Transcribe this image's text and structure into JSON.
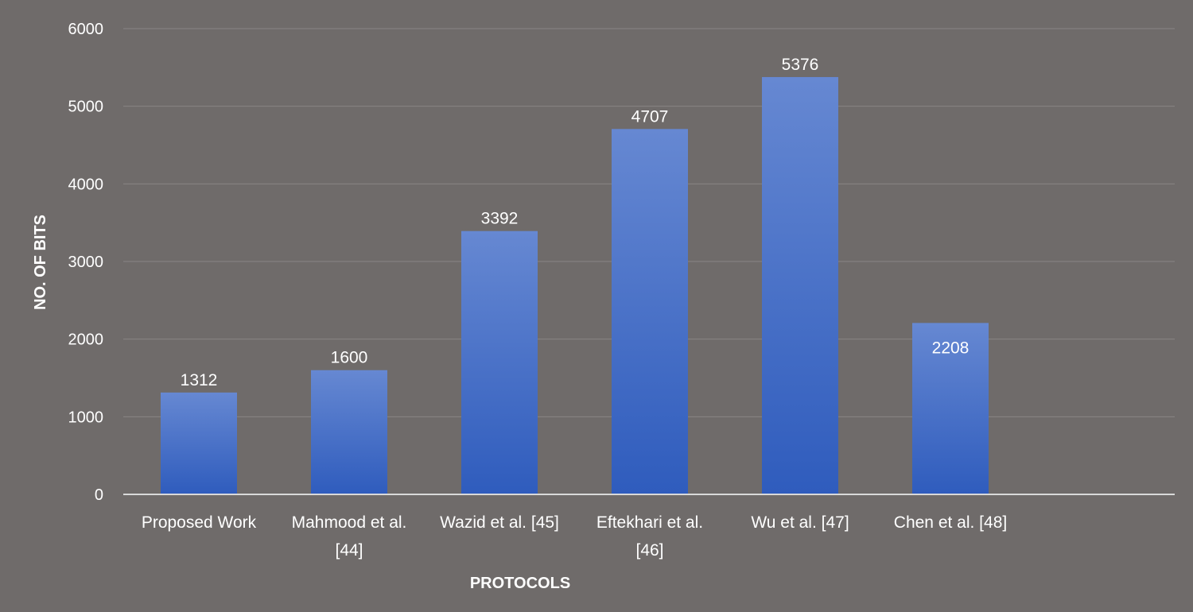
{
  "chart_data": {
    "type": "bar",
    "title": "",
    "xlabel": "PROTOCOLS",
    "ylabel": "NO. OF BITS",
    "ylim": [
      0,
      6000
    ],
    "yticks": [
      0,
      1000,
      2000,
      3000,
      4000,
      5000,
      6000
    ],
    "grid": true,
    "legend": "none",
    "categories": [
      [
        "Proposed Work"
      ],
      [
        "Mahmood et al.",
        "[44]"
      ],
      [
        "Wazid et al. [45]"
      ],
      [
        "Eftekhari et al.",
        "[46]"
      ],
      [
        "Wu et al. [47]"
      ],
      [
        "Chen et al. [48]"
      ]
    ],
    "values": [
      1312,
      1600,
      3392,
      4707,
      5376,
      2208
    ],
    "label_positions": [
      "above",
      "above",
      "above",
      "above",
      "above",
      "inside"
    ],
    "colors": {
      "background": "#6f6b6a",
      "bar_top": "#6688d2",
      "bar_bottom": "#2f5cbd",
      "gridline": "#8a8685",
      "axis": "#d9d9d9",
      "text": "#ffffff"
    }
  }
}
